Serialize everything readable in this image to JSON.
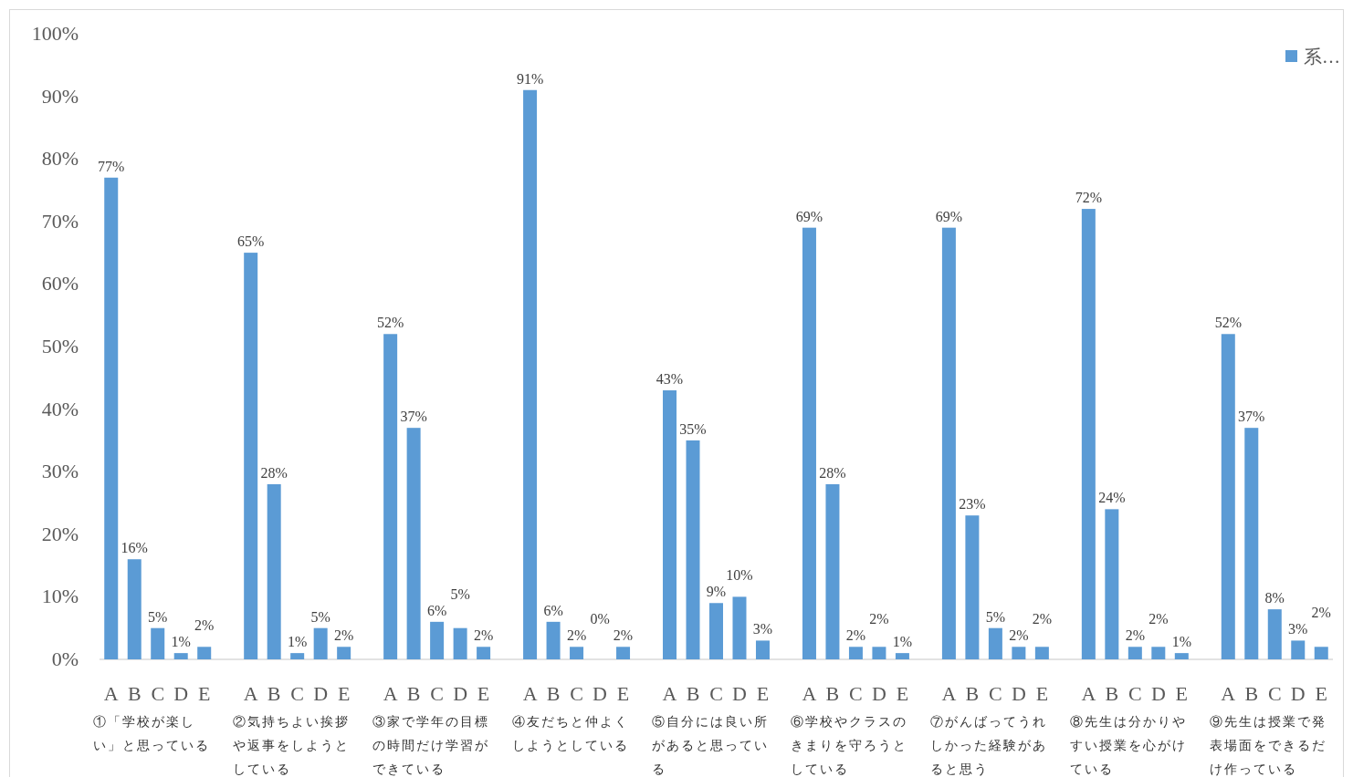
{
  "chart_data": {
    "type": "bar",
    "categories": [
      "A",
      "B",
      "C",
      "D",
      "E",
      null,
      "A",
      "B",
      "C",
      "D",
      "E",
      null,
      "A",
      "B",
      "C",
      "D",
      "E",
      null,
      "A",
      "B",
      "C",
      "D",
      "E",
      null,
      "A",
      "B",
      "C",
      "D",
      "E",
      null,
      "A",
      "B",
      "C",
      "D",
      "E",
      null,
      "A",
      "B",
      "C",
      "D",
      "E",
      null,
      "A",
      "B",
      "C",
      "D",
      "E",
      null,
      "A",
      "B",
      "C",
      "D",
      "E"
    ],
    "series": [
      {
        "name": "系…",
        "color": "#5b9bd5",
        "values": [
          77,
          16,
          5,
          1,
          2,
          null,
          65,
          28,
          1,
          5,
          2,
          null,
          52,
          37,
          6,
          5,
          2,
          null,
          91,
          6,
          2,
          0,
          2,
          null,
          43,
          35,
          9,
          10,
          3,
          null,
          69,
          28,
          2,
          2,
          1,
          null,
          69,
          23,
          5,
          2,
          2,
          null,
          72,
          24,
          2,
          2,
          1,
          null,
          52,
          37,
          8,
          3,
          2
        ],
        "value_labels": [
          "77%",
          "16%",
          "5%",
          "1%",
          "2%",
          null,
          "65%",
          "28%",
          "1%",
          "5%",
          "2%",
          null,
          "52%",
          "37%",
          "6%",
          "5%",
          "2%",
          null,
          "91%",
          "6%",
          "2%",
          "0%",
          "2%",
          null,
          "43%",
          "35%",
          "9%",
          "10%",
          "3%",
          null,
          "69%",
          "28%",
          "2%",
          "2%",
          "1%",
          null,
          "69%",
          "23%",
          "5%",
          "2%",
          "2%",
          null,
          "72%",
          "24%",
          "2%",
          "2%",
          "1%",
          null,
          "52%",
          "37%",
          "8%",
          "3%",
          "2%"
        ]
      }
    ],
    "ylim": [
      0,
      100
    ],
    "yticks": [
      {
        "value": 0,
        "label": "0%"
      },
      {
        "value": 10,
        "label": "10%"
      },
      {
        "value": 20,
        "label": "20%"
      },
      {
        "value": 30,
        "label": "30%"
      },
      {
        "value": 40,
        "label": "40%"
      },
      {
        "value": 50,
        "label": "50%"
      },
      {
        "value": 60,
        "label": "60%"
      },
      {
        "value": 70,
        "label": "70%"
      },
      {
        "value": 80,
        "label": "80%"
      },
      {
        "value": 90,
        "label": "90%"
      },
      {
        "value": 100,
        "label": "100%"
      }
    ],
    "annotations": [
      "①「学校が楽しい」と思っている",
      "②気持ちよい挨拶や返事をしようとしている",
      "③家で学年の目標の時間だけ学習ができている",
      "④友だちと仲よくしようとしている",
      "⑤自分には良い所があると思っている",
      "⑥学校やクラスのきまりを守ろうとしている",
      "⑦がんばってうれしかった経験があると思う",
      "⑧先生は分かりやすい授業を心がけている",
      "⑨先生は授業で発表場面をできるだけ作っている"
    ],
    "grid": false,
    "legend": "top right"
  }
}
